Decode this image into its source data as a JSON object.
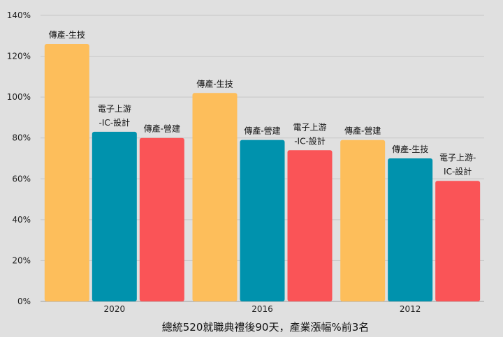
{
  "chart_data": {
    "type": "bar",
    "title": "",
    "xlabel": "總統520就職典禮後90天，產業漲幅%前3名",
    "ylabel": "",
    "ylim": [
      0,
      1.4
    ],
    "yticks": [
      0,
      0.2,
      0.4,
      0.6,
      0.8,
      1.0,
      1.2,
      1.4
    ],
    "ytick_labels": [
      "0%",
      "20%",
      "40%",
      "60%",
      "80%",
      "100%",
      "120%",
      "140%"
    ],
    "grid": true,
    "categories": [
      "2020",
      "2016",
      "2012"
    ],
    "groups": [
      {
        "category": "2020",
        "bars": [
          {
            "label": [
              "傳產-生技"
            ],
            "value": 1.26,
            "color": "#fdbe5b"
          },
          {
            "label": [
              "電子上游",
              "-IC-設計"
            ],
            "value": 0.83,
            "color": "#0092ad"
          },
          {
            "label": [
              "傳產-營建"
            ],
            "value": 0.8,
            "color": "#fa5457"
          }
        ]
      },
      {
        "category": "2016",
        "bars": [
          {
            "label": [
              "傳產-生技"
            ],
            "value": 1.02,
            "color": "#fdbe5b"
          },
          {
            "label": [
              "傳產-營建"
            ],
            "value": 0.79,
            "color": "#0092ad"
          },
          {
            "label": [
              "電子上游",
              "-IC-設計"
            ],
            "value": 0.74,
            "color": "#fa5457"
          }
        ]
      },
      {
        "category": "2012",
        "bars": [
          {
            "label": [
              "傳產-營建"
            ],
            "value": 0.79,
            "color": "#fdbe5b"
          },
          {
            "label": [
              "傳產-生技"
            ],
            "value": 0.7,
            "color": "#0092ad"
          },
          {
            "label": [
              "電子上游-",
              "IC-設計"
            ],
            "value": 0.59,
            "color": "#fa5457"
          }
        ]
      }
    ]
  }
}
